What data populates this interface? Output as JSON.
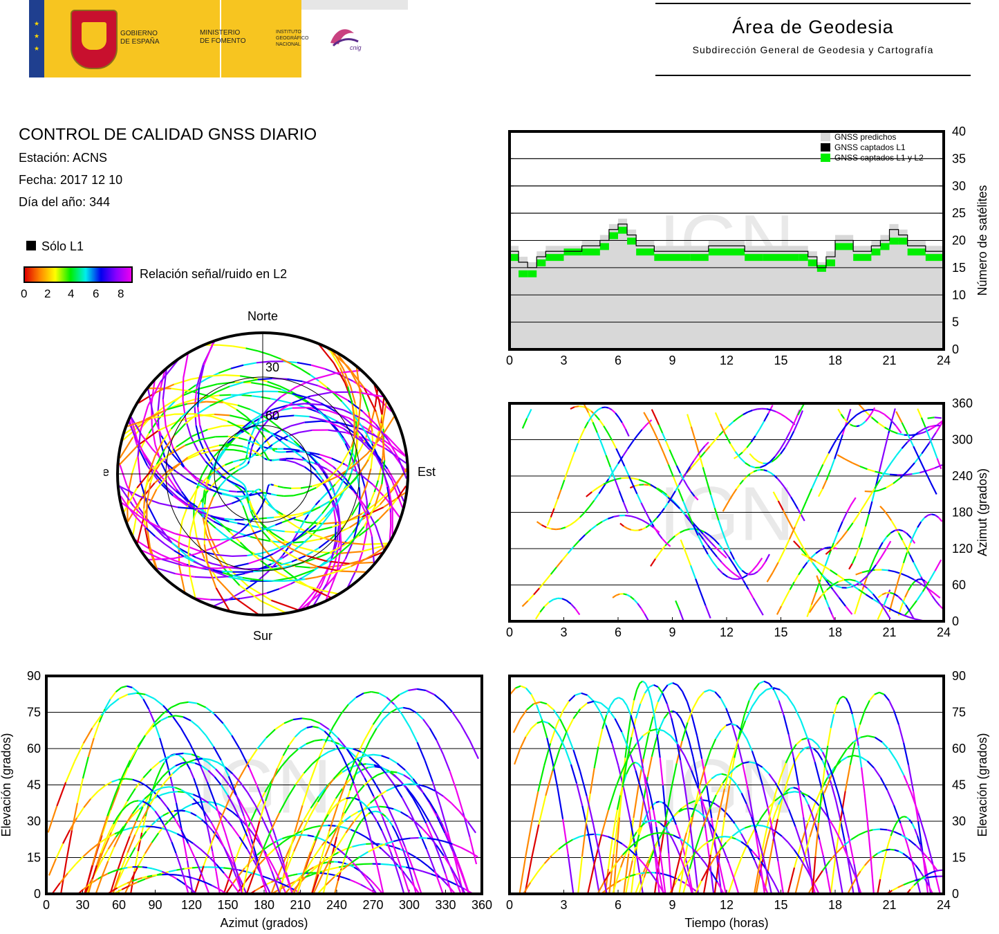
{
  "header": {
    "gov_line1": "GOBIERNO",
    "gov_line2": "DE ESPAÑA",
    "ministry_line1": "MINISTERIO",
    "ministry_line2": "DE FOMENTO",
    "ign_line1": "INSTITUTO",
    "ign_line2": "GEOGRÁFICO",
    "ign_line3": "NACIONAL",
    "cnig_logo": "cnig",
    "area_title": "Área de Geodesia",
    "area_subtitle": "Subdirección General de Geodesia y Cartografía"
  },
  "report": {
    "title": "CONTROL DE CALIDAD GNSS DIARIO",
    "station": "Estación: ACNS",
    "date": "Fecha: 2017 12 10",
    "doy": "Día del año: 344",
    "solo_l1": "Sólo L1",
    "snr_label": "Relación señal/ruido en L2",
    "snr_ticks": [
      "0",
      "2",
      "4",
      "6",
      "8"
    ]
  },
  "watermark": "IGN",
  "colors": {
    "predicted": "#d8d8d8",
    "l1": "#000000",
    "l1l2": "#00ee00",
    "snr_scale": [
      "#dd0000",
      "#ff8800",
      "#ffff00",
      "#00ee00",
      "#00eeee",
      "#0000ee",
      "#8800ff",
      "#ee00ee"
    ]
  },
  "chart_data": [
    {
      "id": "sky",
      "type": "scatter",
      "projection": "polar",
      "labels": {
        "north": "Norte",
        "south": "Sur",
        "west": "Oeste",
        "east": "Este"
      },
      "rings": [
        "30",
        "60"
      ],
      "note_data": "satellite tracks colored by L2 SNR"
    },
    {
      "id": "nsat",
      "type": "area",
      "ylabel": "Número de satélites",
      "xlim": [
        0,
        24
      ],
      "ylim": [
        0,
        40
      ],
      "xticks": [
        "0",
        "3",
        "6",
        "9",
        "12",
        "15",
        "18",
        "21",
        "24"
      ],
      "yticks": [
        "0",
        "5",
        "10",
        "15",
        "20",
        "25",
        "30",
        "35",
        "40"
      ],
      "legend": [
        "GNSS predichos",
        "GNSS captados L1",
        "GNSS captados L1 y L2"
      ],
      "legend_position": "top-right",
      "grid": true,
      "series": [
        {
          "name": "GNSS predichos",
          "x": [
            0,
            0.5,
            1,
            1.5,
            2,
            3,
            4,
            5,
            5.5,
            6,
            6.5,
            7,
            8,
            9,
            10,
            11,
            12,
            13,
            14,
            15,
            16,
            16.5,
            17,
            17.5,
            18,
            19,
            20,
            20.5,
            21,
            21.5,
            22,
            23,
            24
          ],
          "values": [
            19,
            17,
            16,
            18,
            19,
            19,
            20,
            21,
            23,
            24,
            22,
            20,
            19,
            19,
            19,
            20,
            20,
            19,
            19,
            19,
            19,
            18,
            16,
            18,
            21,
            19,
            20,
            21,
            23,
            22,
            20,
            19,
            18
          ]
        },
        {
          "name": "GNSS captados L1",
          "x": [
            0,
            0.5,
            1,
            1.5,
            2,
            3,
            4,
            5,
            5.5,
            6,
            6.5,
            7,
            8,
            9,
            10,
            11,
            12,
            13,
            14,
            15,
            16,
            16.5,
            17,
            17.5,
            18,
            19,
            20,
            20.5,
            21,
            21.5,
            22,
            23,
            24
          ],
          "values": [
            18,
            16,
            15,
            17,
            18,
            18,
            19,
            20,
            22,
            23,
            21,
            19,
            18,
            18,
            18,
            19,
            19,
            18,
            18,
            18,
            18,
            17,
            15,
            17,
            20,
            18,
            19,
            20,
            22,
            21,
            19,
            18,
            17
          ]
        },
        {
          "name": "GNSS captados L1 y L2",
          "x": [
            0,
            0.5,
            1,
            1.5,
            2,
            3,
            4,
            5,
            5.5,
            6,
            6.5,
            7,
            8,
            9,
            10,
            11,
            12,
            13,
            14,
            15,
            16,
            16.5,
            17,
            17.5,
            18,
            19,
            20,
            20.5,
            21,
            21.5,
            22,
            23,
            24
          ],
          "values": [
            17,
            14,
            14,
            16,
            17,
            18,
            18,
            19,
            21,
            22,
            20,
            18,
            17,
            17,
            17,
            18,
            18,
            17,
            17,
            17,
            17,
            16,
            15,
            16,
            19,
            17,
            18,
            19,
            20,
            20,
            18,
            17,
            16
          ]
        }
      ]
    },
    {
      "id": "azimut",
      "type": "scatter",
      "ylabel": "Azimut (grados)",
      "xlim": [
        0,
        24
      ],
      "ylim": [
        0,
        360
      ],
      "xticks": [
        "0",
        "3",
        "6",
        "9",
        "12",
        "15",
        "18",
        "21",
        "24"
      ],
      "yticks": [
        "0",
        "60",
        "120",
        "180",
        "240",
        "300",
        "360"
      ],
      "grid": true
    },
    {
      "id": "elev_az",
      "type": "scatter",
      "xlabel": "Azimut (grados)",
      "ylabel": "Elevación (grados)",
      "xlim": [
        0,
        360
      ],
      "ylim": [
        0,
        90
      ],
      "xticks": [
        "0",
        "30",
        "60",
        "90",
        "120",
        "150",
        "180",
        "210",
        "240",
        "270",
        "300",
        "330",
        "360"
      ],
      "yticks": [
        "0",
        "15",
        "30",
        "45",
        "60",
        "75",
        "90"
      ],
      "grid": true
    },
    {
      "id": "elev_time",
      "type": "scatter",
      "xlabel": "Tiempo (horas)",
      "ylabel": "Elevación (grados)",
      "xlim": [
        0,
        24
      ],
      "ylim": [
        0,
        90
      ],
      "xticks": [
        "0",
        "3",
        "6",
        "9",
        "12",
        "15",
        "18",
        "21",
        "24"
      ],
      "yticks": [
        "0",
        "15",
        "30",
        "45",
        "60",
        "75",
        "90"
      ],
      "grid": true
    }
  ]
}
